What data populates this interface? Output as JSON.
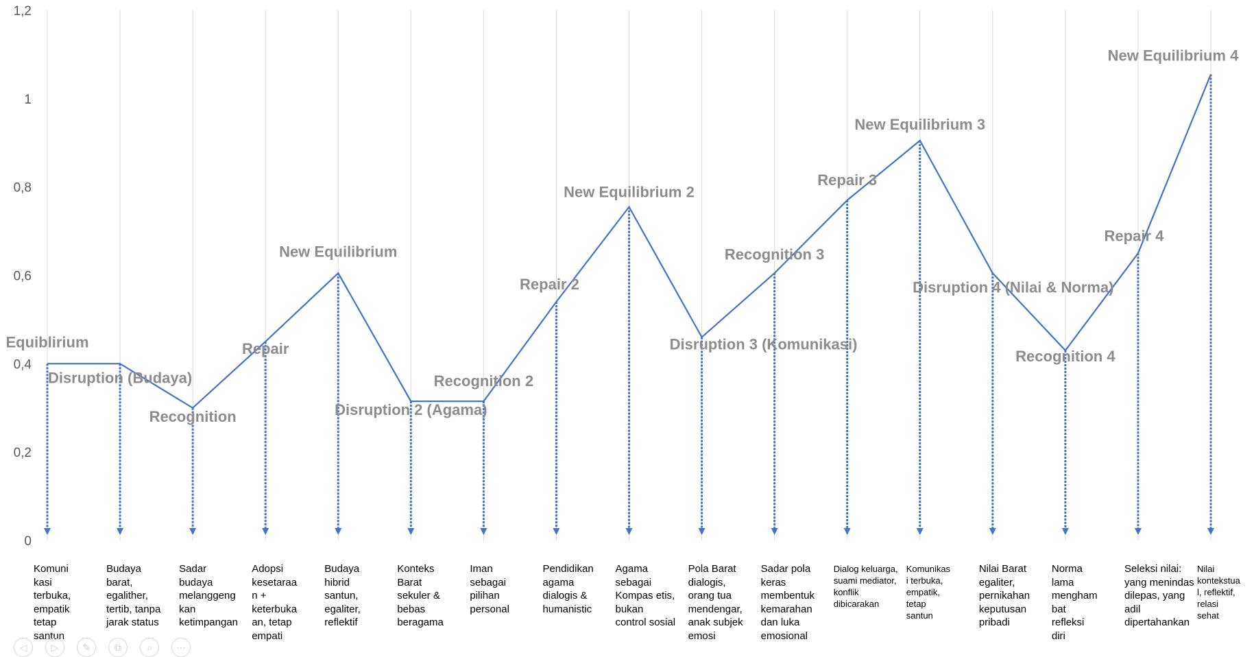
{
  "chart_data": {
    "type": "line",
    "ylim": [
      0,
      1.2
    ],
    "yticks": [
      "0",
      "0,2",
      "0,4",
      "0,6",
      "0,8",
      "1",
      "1,2"
    ],
    "series": [
      {
        "values": [
          0.4,
          0.4,
          0.3,
          0.45,
          0.605,
          0.315,
          0.315,
          0.54,
          0.755,
          0.46,
          0.605,
          0.77,
          0.905,
          0.605,
          0.43,
          0.65,
          1.055
        ]
      }
    ],
    "point_labels": [
      "Equiblirium",
      "Disruption (Budaya)",
      "Recognition",
      "Repair",
      "New Equilibrium",
      "Disruption 2 (Agama)",
      "Recognition 2",
      "Repair 2",
      "New Equilibrium 2",
      "Disruption 3 (Komunikasi)",
      "Recognition 3",
      "Repair 3",
      "New Equilibrium 3",
      "Disruption 4 (Nilai & Norma)",
      "Recognition 4",
      "Repair 4",
      "New Equilibrium 4"
    ],
    "categories": [
      "Komuni\nkasi\nterbuka,\nempatik\ntetap\nsantun",
      "Budaya\nbarat,\negalither,\ntertib, tanpa\njarak status",
      "Sadar\nbudaya\nmelanggeng\nkan\nketimpangan",
      "Adopsi\nkesetaraa\nn +\nketerbuka\nan, tetap\nempati",
      "Budaya\nhibrid\nsantun,\negaliter,\nreflektif",
      "Konteks\nBarat\nsekuler &\nbebas\nberagama",
      "Iman\nsebagai\npilihan\npersonal",
      "Pendidikan\nagama\ndialogis &\nhumanistic",
      "Agama\nsebagai\nKompas etis,\nbukan\ncontrol sosial",
      "Pola Barat\ndialogis,\norang tua\nmendengar,\nanak subjek\nemosi",
      "Sadar pola\nkeras\nmembentuk\nkemarahan\ndan luka\nemosional",
      "Dialog keluarga,\nsuami mediator,\nkonflik\ndibicarakan",
      "Komunikas\ni terbuka,\nempatik,\ntetap\nsantun",
      "Nilai Barat\negaliter,\npernikahan\nkeputusan\npribadi",
      "Norma\nlama\nmengham\nbat\nrefleksi\ndiri",
      "Seleksi nilai:\nyang menindas\ndilepas, yang\nadil\ndipertahankan",
      "Nilai\nkontekstua\nl, reflektif,\nrelasi\nsehat"
    ],
    "line_color": "#4472c4",
    "grid": "vertical"
  },
  "toolbar": {
    "icons": [
      "back-icon",
      "forward-icon",
      "pen-icon",
      "slides-icon",
      "zoom-icon",
      "more-icon"
    ],
    "glyphs": [
      "◁",
      "▷",
      "✎",
      "⧉",
      "⌕",
      "⋯"
    ]
  }
}
